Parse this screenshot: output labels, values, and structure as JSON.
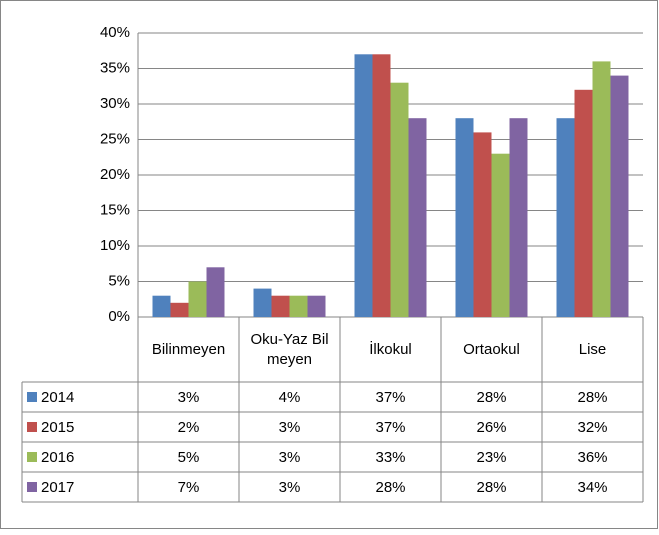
{
  "chart_data": {
    "type": "bar",
    "categories": [
      "Bilinmeyen",
      "Oku-Yaz Bilmeyen",
      "İlkokul",
      "Ortaokul",
      "Lise"
    ],
    "series": [
      {
        "name": "2014",
        "color": "#4f81bd",
        "values": [
          3,
          4,
          37,
          28,
          28
        ],
        "value_labels": [
          "3%",
          "4%",
          "37%",
          "28%",
          "28%"
        ]
      },
      {
        "name": "2015",
        "color": "#c0504d",
        "values": [
          2,
          3,
          37,
          26,
          32
        ],
        "value_labels": [
          "2%",
          "3%",
          "37%",
          "26%",
          "32%"
        ]
      },
      {
        "name": "2016",
        "color": "#9bbb59",
        "values": [
          5,
          3,
          33,
          23,
          36
        ],
        "value_labels": [
          "5%",
          "3%",
          "33%",
          "23%",
          "36%"
        ]
      },
      {
        "name": "2017",
        "color": "#8064a2",
        "values": [
          7,
          3,
          28,
          28,
          34
        ],
        "value_labels": [
          "7%",
          "3%",
          "28%",
          "28%",
          "34%"
        ]
      }
    ],
    "ylim": [
      0,
      40
    ],
    "yticks": [
      {
        "value": 0,
        "label": "0%"
      },
      {
        "value": 5,
        "label": "5%"
      },
      {
        "value": 10,
        "label": "10%"
      },
      {
        "value": 15,
        "label": "15%"
      },
      {
        "value": 20,
        "label": "20%"
      },
      {
        "value": 25,
        "label": "25%"
      },
      {
        "value": 30,
        "label": "30%"
      },
      {
        "value": 35,
        "label": "35%"
      },
      {
        "value": 40,
        "label": "40%"
      }
    ],
    "grid": true
  }
}
